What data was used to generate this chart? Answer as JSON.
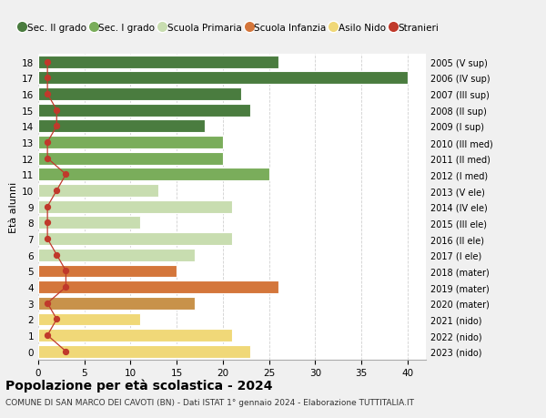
{
  "ages": [
    18,
    17,
    16,
    15,
    14,
    13,
    12,
    11,
    10,
    9,
    8,
    7,
    6,
    5,
    4,
    3,
    2,
    1,
    0
  ],
  "values": [
    26,
    40,
    22,
    23,
    18,
    20,
    20,
    25,
    13,
    21,
    11,
    21,
    17,
    15,
    26,
    17,
    11,
    21,
    23
  ],
  "stranieri": [
    1,
    1,
    1,
    2,
    2,
    1,
    1,
    3,
    2,
    1,
    1,
    1,
    2,
    3,
    3,
    1,
    2,
    1,
    3
  ],
  "right_labels": [
    "2005 (V sup)",
    "2006 (IV sup)",
    "2007 (III sup)",
    "2008 (II sup)",
    "2009 (I sup)",
    "2010 (III med)",
    "2011 (II med)",
    "2012 (I med)",
    "2013 (V ele)",
    "2014 (IV ele)",
    "2015 (III ele)",
    "2016 (II ele)",
    "2017 (I ele)",
    "2018 (mater)",
    "2019 (mater)",
    "2020 (mater)",
    "2021 (nido)",
    "2022 (nido)",
    "2023 (nido)"
  ],
  "bar_colors": [
    "#4a7c3f",
    "#4a7c3f",
    "#4a7c3f",
    "#4a7c3f",
    "#4a7c3f",
    "#7aad5b",
    "#7aad5b",
    "#7aad5b",
    "#c8ddb0",
    "#c8ddb0",
    "#c8ddb0",
    "#c8ddb0",
    "#c8ddb0",
    "#d4763b",
    "#d4763b",
    "#c8924a",
    "#f0d878",
    "#f0d878",
    "#f0d878"
  ],
  "legend_labels": [
    "Sec. II grado",
    "Sec. I grado",
    "Scuola Primaria",
    "Scuola Infanzia",
    "Asilo Nido",
    "Stranieri"
  ],
  "legend_colors": [
    "#4a7c3f",
    "#7aad5b",
    "#c8ddb0",
    "#d4763b",
    "#f0d878",
    "#c0392b"
  ],
  "title": "Popolazione per età scolastica - 2024",
  "subtitle": "COMUNE DI SAN MARCO DEI CAVOTI (BN) - Dati ISTAT 1° gennaio 2024 - Elaborazione TUTTITALIA.IT",
  "ylabel_left": "Età alunni",
  "xlim": [
    0,
    42
  ],
  "bg_color": "#f0f0f0",
  "plot_bg_color": "#ffffff",
  "stranieri_color": "#c0392b",
  "grid_color": "#d0d0d0"
}
